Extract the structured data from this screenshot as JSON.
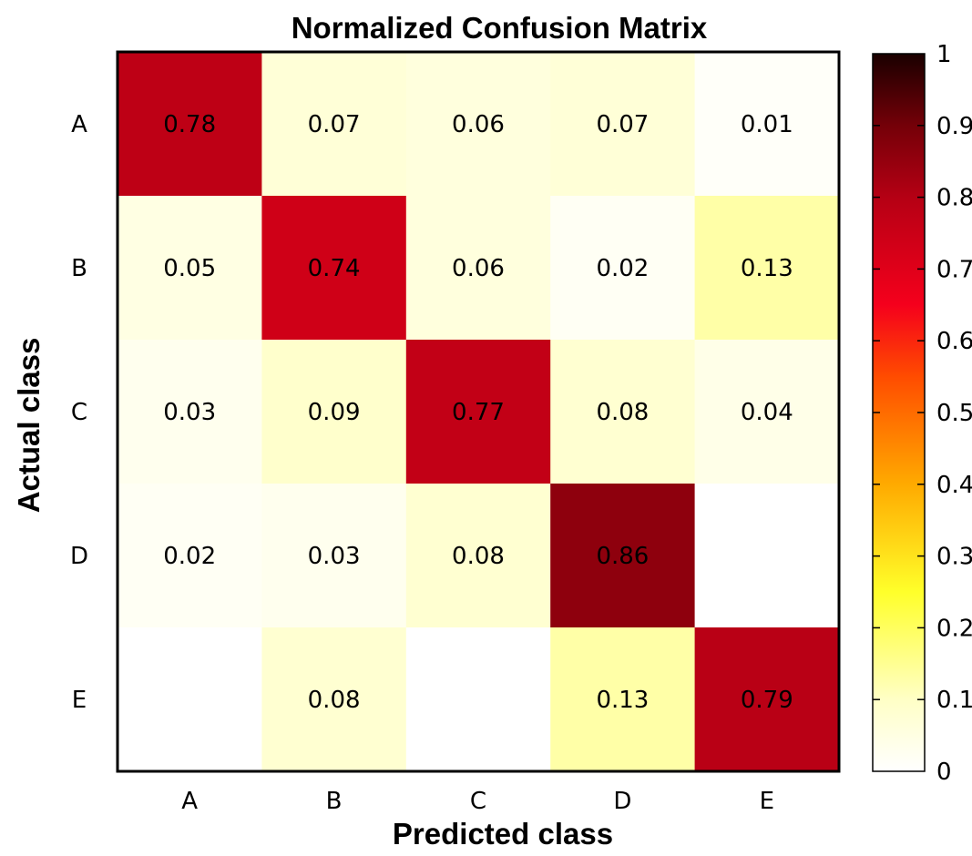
{
  "chart_data": {
    "type": "heatmap",
    "title": "Normalized Confusion Matrix",
    "xlabel": "Predicted class",
    "ylabel": "Actual class",
    "x_categories": [
      "A",
      "B",
      "C",
      "D",
      "E"
    ],
    "y_categories": [
      "A",
      "B",
      "C",
      "D",
      "E"
    ],
    "values": [
      [
        0.78,
        0.07,
        0.06,
        0.07,
        0.01
      ],
      [
        0.05,
        0.74,
        0.06,
        0.02,
        0.13
      ],
      [
        0.03,
        0.09,
        0.77,
        0.08,
        0.04
      ],
      [
        0.02,
        0.03,
        0.08,
        0.86,
        0.0
      ],
      [
        0.0,
        0.08,
        0.0,
        0.13,
        0.79
      ]
    ],
    "cell_labels": [
      [
        "0.78",
        "0.07",
        "0.06",
        "0.07",
        "0.01"
      ],
      [
        "0.05",
        "0.74",
        "0.06",
        "0.02",
        "0.13"
      ],
      [
        "0.03",
        "0.09",
        "0.77",
        "0.08",
        "0.04"
      ],
      [
        "0.02",
        "0.03",
        "0.08",
        "0.86",
        ""
      ],
      [
        "",
        "0.08",
        "",
        "0.13",
        "0.79"
      ]
    ],
    "colorbar": {
      "min": 0,
      "max": 1,
      "tick_labels": [
        "0",
        "0.1",
        "0.2",
        "0.3",
        "0.4",
        "0.5",
        "0.6",
        "0.7",
        "0.8",
        "0.9",
        "1"
      ],
      "colormap": "hot (reversed)"
    },
    "grid": false
  }
}
